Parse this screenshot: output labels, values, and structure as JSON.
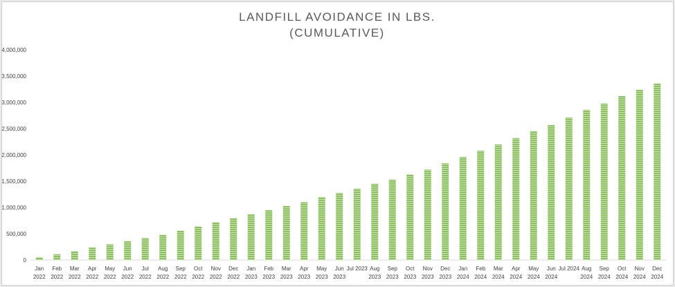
{
  "chart_data": {
    "type": "bar",
    "title_lines": [
      "LANDFILL AVOIDANCE IN LBS.",
      "(CUMULATIVE)"
    ],
    "xlabel": "",
    "ylabel": "",
    "ylim": [
      0,
      4000000
    ],
    "yticks": [
      0,
      500000,
      1000000,
      1500000,
      2000000,
      2500000,
      3000000,
      3500000,
      4000000
    ],
    "ytick_labels": [
      "0",
      "500,000",
      "1,000,000",
      "1,500,000",
      "2,000,000",
      "2,500,000",
      "3,000,000",
      "3,500,000",
      "4,000,000"
    ],
    "grid": false,
    "bar_color": "#8dc063",
    "bar_stripe_color": "#c9e4b0",
    "categories": [
      [
        "Jan",
        "2022"
      ],
      [
        "Feb",
        "2022"
      ],
      [
        "Mar",
        "2022"
      ],
      [
        "Apr",
        "2022"
      ],
      [
        "May",
        "2022"
      ],
      [
        "Jun",
        "2022"
      ],
      [
        "Jul",
        "2022"
      ],
      [
        "Aug",
        "2022"
      ],
      [
        "Sep",
        "2022"
      ],
      [
        "Oct",
        "2022"
      ],
      [
        "Nov",
        "2022"
      ],
      [
        "Dec",
        "2022"
      ],
      [
        "Jan",
        "2023"
      ],
      [
        "Feb",
        "2023"
      ],
      [
        "Mar",
        "2023"
      ],
      [
        "Apr",
        "2023"
      ],
      [
        "May",
        "2023"
      ],
      [
        "Jun",
        "2023"
      ],
      [
        "Jul 2023"
      ],
      [
        "Aug",
        "2023"
      ],
      [
        "Sep",
        "2023"
      ],
      [
        "Oct",
        "2023"
      ],
      [
        "Nov",
        "2023"
      ],
      [
        "Dec",
        "2023"
      ],
      [
        "Jan",
        "2024"
      ],
      [
        "Feb",
        "2024"
      ],
      [
        "Mar",
        "2024"
      ],
      [
        "Apr",
        "2024"
      ],
      [
        "May",
        "2024"
      ],
      [
        "Jun",
        "2024"
      ],
      [
        "Jul 2024"
      ],
      [
        "Aug",
        "2024"
      ],
      [
        "Sep",
        "2024"
      ],
      [
        "Oct",
        "2024"
      ],
      [
        "Nov",
        "2024"
      ],
      [
        "Dec",
        "2024"
      ]
    ],
    "values": [
      55000,
      110000,
      170000,
      240000,
      300000,
      360000,
      420000,
      480000,
      560000,
      640000,
      720000,
      800000,
      870000,
      950000,
      1030000,
      1100000,
      1200000,
      1280000,
      1360000,
      1450000,
      1530000,
      1630000,
      1720000,
      1840000,
      1960000,
      2080000,
      2200000,
      2320000,
      2450000,
      2570000,
      2710000,
      2860000,
      2980000,
      3120000,
      3240000,
      3360000
    ]
  }
}
